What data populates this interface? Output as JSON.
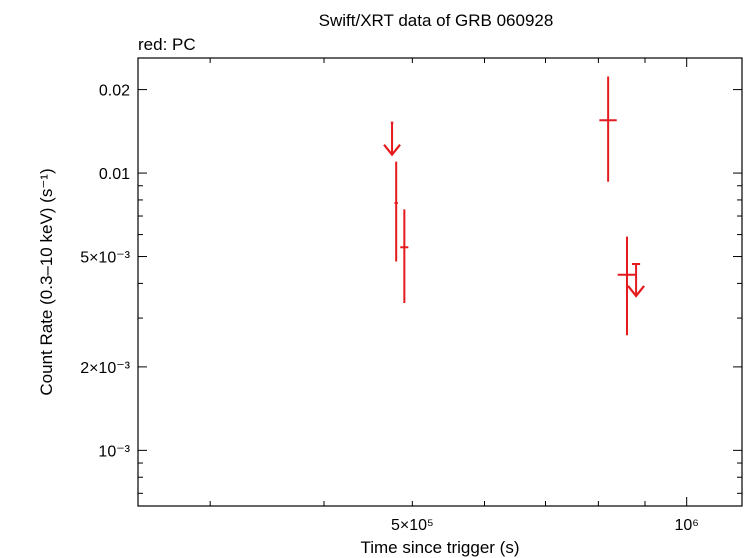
{
  "chart_data": {
    "type": "scatter",
    "title": "Swift/XRT data of GRB 060928",
    "subtitle": "red: PC",
    "xlabel": "Time since trigger (s)",
    "ylabel": "Count Rate (0.3–10 keV) (s⁻¹)",
    "xscale": "log",
    "yscale": "log",
    "xlim": [
      250000,
      1150000
    ],
    "ylim": [
      0.00063,
      0.026
    ],
    "grid": false,
    "color": "#e41a1c",
    "x_ticks": [
      {
        "value": 500000,
        "label": "5×10⁵"
      },
      {
        "value": 1000000,
        "label": "10⁶"
      }
    ],
    "y_ticks": [
      {
        "value": 0.001,
        "label": "10⁻³"
      },
      {
        "value": 0.002,
        "label": "2×10⁻³"
      },
      {
        "value": 0.005,
        "label": "5×10⁻³"
      },
      {
        "value": 0.01,
        "label": "0.01"
      },
      {
        "value": 0.02,
        "label": "0.02"
      }
    ],
    "points": [
      {
        "x": 480000,
        "xerr": [
          2000,
          2000
        ],
        "y": 0.0078,
        "yerr": [
          0.003,
          0.0032
        ]
      },
      {
        "x": 490000,
        "xerr": [
          5000,
          5000
        ],
        "y": 0.0054,
        "yerr": [
          0.002,
          0.002
        ]
      },
      {
        "x": 820000,
        "xerr": [
          18000,
          18000
        ],
        "y": 0.0155,
        "yerr": [
          0.0062,
          0.0068
        ]
      },
      {
        "x": 860000,
        "xerr": [
          20000,
          20000
        ],
        "y": 0.0043,
        "yerr": [
          0.0017,
          0.0016
        ]
      }
    ],
    "upper_limits": [
      {
        "x": 475000,
        "xerr": [
          1500,
          1500
        ],
        "y": 0.0152
      },
      {
        "x": 880000,
        "xerr": [
          9000,
          9000
        ],
        "y": 0.0047
      }
    ]
  }
}
